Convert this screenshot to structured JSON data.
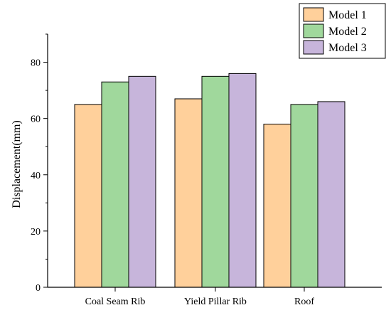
{
  "chart_data": {
    "type": "bar",
    "title": "",
    "xlabel": "",
    "ylabel": "Displacement(mm)",
    "ylim": [
      0,
      90
    ],
    "yticks": [
      0,
      20,
      40,
      60,
      80
    ],
    "grid": false,
    "legend_position": "top-right",
    "categories": [
      "Coal Seam Rib",
      "Yield Pillar Rib",
      "Roof"
    ],
    "series": [
      {
        "name": "Model 1",
        "color": "#FFD09B",
        "values": [
          65,
          67,
          58
        ]
      },
      {
        "name": "Model 2",
        "color": "#A0D89C",
        "values": [
          73,
          75,
          65
        ]
      },
      {
        "name": "Model 3",
        "color": "#C7B5DB",
        "values": [
          75,
          76,
          66
        ]
      }
    ]
  }
}
